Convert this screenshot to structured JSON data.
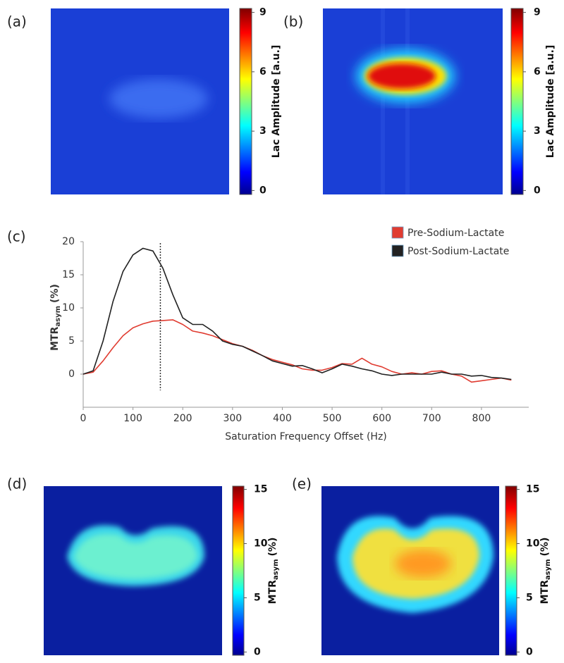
{
  "chart_data": [
    {
      "type": "heatmap",
      "panel_label": "(a)",
      "colorbar_label": "Lac Amplitude [a.u.]",
      "clim": [
        -0.2,
        9.2
      ],
      "cticks": [
        0,
        3,
        6,
        9
      ]
    },
    {
      "type": "heatmap",
      "panel_label": "(b)",
      "colorbar_label": "Lac Amplitude [a.u.]",
      "clim": [
        -0.2,
        9.2
      ],
      "cticks": [
        0,
        3,
        6,
        9
      ]
    },
    {
      "type": "line",
      "panel_label": "(c)",
      "y_label_main": "MTR",
      "y_label_sub": "asym",
      "y_label_unit": "(%)",
      "xlabel": "Saturation Frequency Offset (Hz)",
      "x": [
        0,
        20,
        40,
        60,
        80,
        100,
        120,
        140,
        160,
        180,
        200,
        220,
        240,
        260,
        280,
        300,
        320,
        340,
        360,
        380,
        400,
        420,
        440,
        460,
        480,
        500,
        520,
        540,
        560,
        580,
        600,
        620,
        640,
        660,
        680,
        700,
        720,
        740,
        760,
        780,
        800,
        820,
        840,
        860
      ],
      "series": [
        {
          "name": "Pre-Sodium-Lactate",
          "color": "#e03c31",
          "values": [
            0,
            0.3,
            2,
            4,
            5.8,
            7,
            7.6,
            8,
            8.1,
            8.2,
            7.5,
            6.5,
            6.2,
            5.8,
            5.2,
            4.6,
            4.2,
            3.6,
            2.8,
            2.2,
            1.8,
            1.4,
            0.8,
            0.6,
            0.6,
            1,
            1.6,
            1.5,
            2.4,
            1.5,
            1.1,
            0.4,
            0,
            0.2,
            0,
            0.4,
            0.5,
            0,
            -0.3,
            -1.2,
            -1,
            -0.8,
            -0.6,
            -0.9
          ]
        },
        {
          "name": "Post-Sodium-Lactate",
          "color": "#222222",
          "values": [
            0,
            0.5,
            5,
            11,
            15.5,
            18,
            19,
            18.6,
            16,
            12,
            8.5,
            7.5,
            7.5,
            6.5,
            5,
            4.5,
            4.2,
            3.5,
            2.8,
            2,
            1.6,
            1.2,
            1.3,
            0.8,
            0.2,
            0.8,
            1.5,
            1.2,
            0.8,
            0.5,
            0,
            -0.2,
            0,
            0,
            0,
            0,
            0.3,
            0,
            0,
            -0.3,
            -0.2,
            -0.5,
            -0.6,
            -0.8
          ]
        }
      ],
      "vline": 155,
      "xlim": [
        0,
        895
      ],
      "xticks": [
        0,
        100,
        200,
        300,
        400,
        500,
        600,
        700,
        800
      ],
      "ylim": [
        -5,
        20
      ],
      "yticks": [
        0,
        5,
        10,
        15,
        20
      ],
      "grid": false,
      "legend": "upper right"
    },
    {
      "type": "heatmap",
      "panel_label": "(d)",
      "colorbar_label_main": "MTR",
      "colorbar_label_sub": "asym",
      "colorbar_label_unit": "(%)",
      "clim": [
        -0.3,
        15.3
      ],
      "cticks": [
        0,
        5,
        10,
        15
      ]
    },
    {
      "type": "heatmap",
      "panel_label": "(e)",
      "colorbar_label_main": "MTR",
      "colorbar_label_sub": "asym",
      "colorbar_label_unit": "(%)",
      "clim": [
        -0.3,
        15.3
      ],
      "cticks": [
        0,
        5,
        10,
        15
      ]
    }
  ]
}
